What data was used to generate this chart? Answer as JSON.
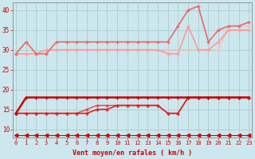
{
  "background_color": "#cce8ee",
  "grid_color": "#aacccc",
  "xlabel": "Vent moyen/en rafales ( km/h )",
  "xlabel_color": "#cc0000",
  "tick_color": "#cc0000",
  "x_ticks": [
    0,
    1,
    2,
    3,
    4,
    5,
    6,
    7,
    8,
    9,
    10,
    11,
    12,
    13,
    14,
    15,
    16,
    17,
    18,
    19,
    20,
    21,
    22,
    23
  ],
  "ylim": [
    8,
    42
  ],
  "xlim": [
    -0.3,
    23.3
  ],
  "yticks": [
    10,
    15,
    20,
    25,
    30,
    35,
    40
  ],
  "line_bottom": {
    "y": [
      8.5,
      8.5,
      8.5,
      8.5,
      8.5,
      8.5,
      8.5,
      8.5,
      8.5,
      8.5,
      8.5,
      8.5,
      8.5,
      8.5,
      8.5,
      8.5,
      8.5,
      8.5,
      8.5,
      8.5,
      8.5,
      8.5,
      8.5,
      8.5
    ],
    "color": "#cc0000",
    "lw": 0.8
  },
  "lines_upper": [
    {
      "x": [
        0,
        1,
        2,
        3,
        4,
        5,
        6,
        7,
        8,
        9,
        10,
        11,
        12,
        13,
        14,
        15,
        16,
        17,
        18,
        19,
        20,
        21,
        22,
        23
      ],
      "y": [
        29,
        32,
        29,
        29,
        32,
        32,
        32,
        32,
        32,
        32,
        32,
        32,
        32,
        32,
        32,
        32,
        36,
        40,
        41,
        32,
        35,
        36,
        36,
        37
      ],
      "color": "#ee6666",
      "lw": 1.2
    },
    {
      "x": [
        0,
        1,
        2,
        3,
        4,
        5,
        6,
        7,
        8,
        9,
        10,
        11,
        12,
        13,
        14,
        15,
        16,
        17,
        18,
        19,
        20,
        21,
        22,
        23
      ],
      "y": [
        29,
        29,
        29,
        30,
        30,
        30,
        30,
        30,
        30,
        30,
        30,
        30,
        30,
        30,
        30,
        29,
        29,
        36,
        30,
        30,
        32,
        35,
        35,
        35
      ],
      "color": "#ff9999",
      "lw": 1.2
    },
    {
      "x": [
        0,
        1,
        2,
        3,
        4,
        5,
        6,
        7,
        8,
        9,
        10,
        11,
        12,
        13,
        14,
        15,
        16,
        17,
        18,
        19,
        20,
        21,
        22,
        23
      ],
      "y": [
        29,
        29,
        29,
        30,
        30,
        30,
        30,
        30,
        30,
        30,
        30,
        30,
        30,
        30,
        30,
        30,
        30,
        30,
        30,
        30,
        30,
        36,
        36,
        36
      ],
      "color": "#ffbbbb",
      "lw": 1.0
    }
  ],
  "lines_lower": [
    {
      "x": [
        0,
        1,
        2,
        3,
        4,
        5,
        6,
        7,
        8,
        9,
        10,
        11,
        12,
        13,
        14,
        15,
        16,
        17,
        18,
        19,
        20,
        21,
        22,
        23
      ],
      "y": [
        14,
        18,
        18,
        18,
        18,
        18,
        18,
        18,
        18,
        18,
        18,
        18,
        18,
        18,
        18,
        18,
        18,
        18,
        18,
        18,
        18,
        18,
        18,
        18
      ],
      "color": "#cc0000",
      "lw": 1.8
    },
    {
      "x": [
        0,
        1,
        2,
        3,
        4,
        5,
        6,
        7,
        8,
        9,
        10,
        11,
        12,
        13,
        14,
        15,
        16,
        17,
        18,
        19,
        20,
        21,
        22,
        23
      ],
      "y": [
        14,
        14,
        14,
        14,
        14,
        14,
        14,
        14,
        15,
        15,
        16,
        16,
        16,
        16,
        16,
        14,
        14,
        18,
        18,
        18,
        18,
        18,
        18,
        18
      ],
      "color": "#dd2222",
      "lw": 1.2
    },
    {
      "x": [
        0,
        1,
        2,
        3,
        4,
        5,
        6,
        7,
        8,
        9,
        10,
        11,
        12,
        13,
        14,
        15,
        16,
        17,
        18,
        19,
        20,
        21,
        22,
        23
      ],
      "y": [
        14,
        14,
        14,
        14,
        14,
        14,
        14,
        15,
        16,
        16,
        16,
        16,
        16,
        16,
        16,
        14,
        14,
        18,
        18,
        18,
        18,
        18,
        18,
        18
      ],
      "color": "#ee4444",
      "lw": 1.0
    }
  ]
}
